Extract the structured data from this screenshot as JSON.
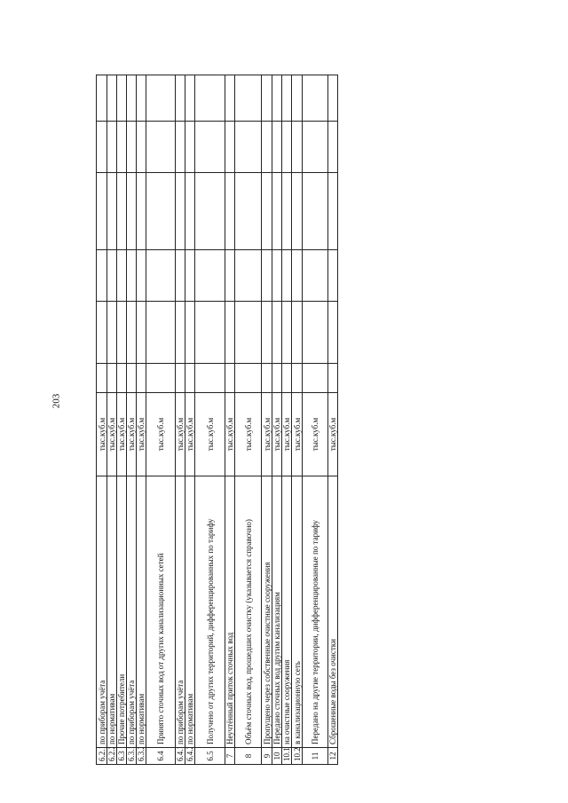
{
  "page_number": "203",
  "rows": [
    {
      "num": "6.2.1",
      "desc": "по приборам учёта",
      "unit": "тыс.куб.м"
    },
    {
      "num": "6.2.2",
      "desc": "по нормативам",
      "unit": "тыс.куб.м"
    },
    {
      "num": "6.3",
      "desc": "Прочие потребители",
      "unit": "тыс.куб.м"
    },
    {
      "num": "6.3.1",
      "desc": "по приборам учёта",
      "unit": "тыс.куб.м"
    },
    {
      "num": "6.3.2",
      "desc": "по нормативам",
      "unit": "тыс.куб.м"
    },
    {
      "num": "6.4",
      "desc": "Принято сточных вод от других канализационных сетей",
      "unit": "тыс.куб.м"
    },
    {
      "num": "6.4.1",
      "desc": "по приборам учёта",
      "unit": "тыс.куб.м"
    },
    {
      "num": "6.4.2",
      "desc": "по нормативам",
      "unit": "тыс.куб.м"
    },
    {
      "num": "6.5",
      "desc": "Получено от других территорий, дифференцированных по тарифу",
      "unit": "тыс.куб.м"
    },
    {
      "num": "7",
      "desc": "Неучтённый приток сточных вод",
      "unit": "тыс.куб.м"
    },
    {
      "num": "8",
      "desc": "Объём сточных вод, прошедших очистку (указывается справочно)",
      "unit": "тыс.куб.м"
    },
    {
      "num": "9",
      "desc": "Пропущено через собственные очистные сооружения",
      "unit": "тыс.куб.м"
    },
    {
      "num": "10",
      "desc": "Передано сточных вод другим канализациям",
      "unit": "тыс.куб.м"
    },
    {
      "num": "10.1",
      "desc": "на очистные сооружения",
      "unit": "тыс.куб.м"
    },
    {
      "num": "10.2",
      "desc": "в канализационную сеть",
      "unit": "тыс.куб.м"
    },
    {
      "num": "11",
      "desc": "Передано на другие территории, дифференцированные по тарифу",
      "unit": "тыс.куб.м"
    },
    {
      "num": "12",
      "desc": "Сброшенные воды без очистки",
      "unit": "тыс.куб.м"
    }
  ]
}
